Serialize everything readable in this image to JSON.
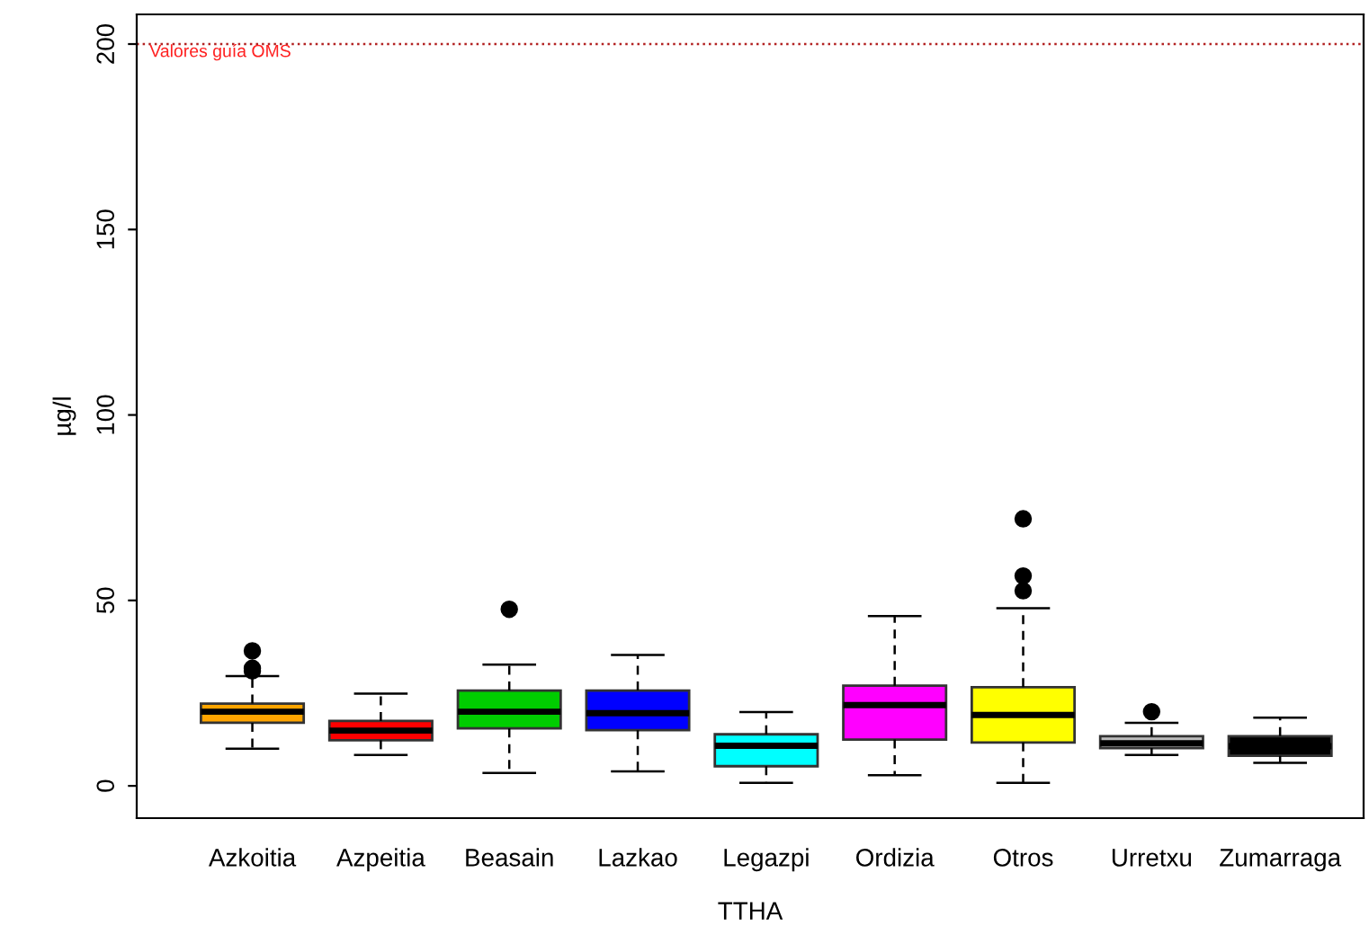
{
  "chart_data": {
    "type": "box",
    "xlabel": "TTHA",
    "ylabel": "µg/l",
    "categories": [
      "Azkoitia",
      "Azpeitia",
      "Beasain",
      "Lazkao",
      "Legazpi",
      "Ordizia",
      "Otros",
      "Urretxu",
      "Zumarraga"
    ],
    "colors": [
      "#ffa500",
      "#ff0000",
      "#00cd00",
      "#0000ff",
      "#00ffff",
      "#ff00ff",
      "#ffff00",
      "#bebebe",
      "#000000"
    ],
    "boxes": [
      {
        "low": 10,
        "q1": 17,
        "median": 20,
        "q3": 22.2,
        "high": 29.6,
        "outliers": [
          31,
          31.7,
          36.4
        ]
      },
      {
        "low": 8.3,
        "q1": 12.3,
        "median": 14.9,
        "q3": 17.5,
        "high": 24.9
      },
      {
        "low": 3.5,
        "q1": 15.5,
        "median": 20,
        "q3": 25.7,
        "high": 32.7,
        "outliers": [
          47.6
        ]
      },
      {
        "low": 3.9,
        "q1": 15,
        "median": 19.6,
        "q3": 25.7,
        "high": 35.3
      },
      {
        "low": 0.8,
        "q1": 5.3,
        "median": 10.8,
        "q3": 13.9,
        "high": 19.9
      },
      {
        "low": 2.9,
        "q1": 12.5,
        "median": 21.8,
        "q3": 27,
        "high": 45.8
      },
      {
        "low": 0.8,
        "q1": 11.7,
        "median": 19.1,
        "q3": 26.6,
        "high": 47.9,
        "outliers": [
          52.6,
          56.6,
          72
        ]
      },
      {
        "low": 8.3,
        "q1": 10.2,
        "median": 11.5,
        "q3": 13.4,
        "high": 17,
        "outliers": [
          20
        ]
      },
      {
        "low": 6.2,
        "q1": 8.1,
        "median": 10.7,
        "q3": 13.4,
        "high": 18.4
      }
    ],
    "ylim": [
      -8.7,
      208
    ],
    "yticks": [
      0,
      50,
      100,
      150,
      200
    ],
    "grid": false,
    "legend": false,
    "ref_lines": [
      {
        "axis": "y",
        "value": 200,
        "label": "Valores guía OMS",
        "color": "#b22222",
        "line_style": "dotted"
      }
    ]
  }
}
